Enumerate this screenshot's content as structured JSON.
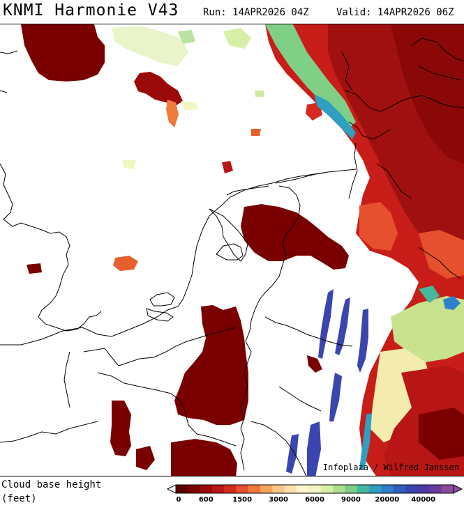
{
  "header": {
    "title": "KNMI Harmonie V43",
    "run": "Run: 14APR2026 04Z",
    "valid": "Valid: 14APR2026 06Z"
  },
  "map": {
    "credit": "Infoplaza / Wilfred Janssen"
  },
  "legend": {
    "label_line1": "Cloud base height",
    "label_line2": "(feet)",
    "colors": [
      "#5a0000",
      "#7d0000",
      "#9a0a0a",
      "#b81515",
      "#d42a20",
      "#e6502e",
      "#f0783c",
      "#f7a45a",
      "#fbc88a",
      "#fde2b0",
      "#fff7cf",
      "#f1f7c2",
      "#d7efa6",
      "#aee090",
      "#7fcf86",
      "#45b8a0",
      "#2f9fc2",
      "#2f7fcb",
      "#2f5fc0",
      "#3a45b0",
      "#4e3aa6",
      "#6a3a9e",
      "#8a4a9e"
    ],
    "tick_labels": [
      "0",
      "600",
      "1500",
      "3000",
      "6000",
      "9000",
      "20000",
      "40000"
    ]
  }
}
